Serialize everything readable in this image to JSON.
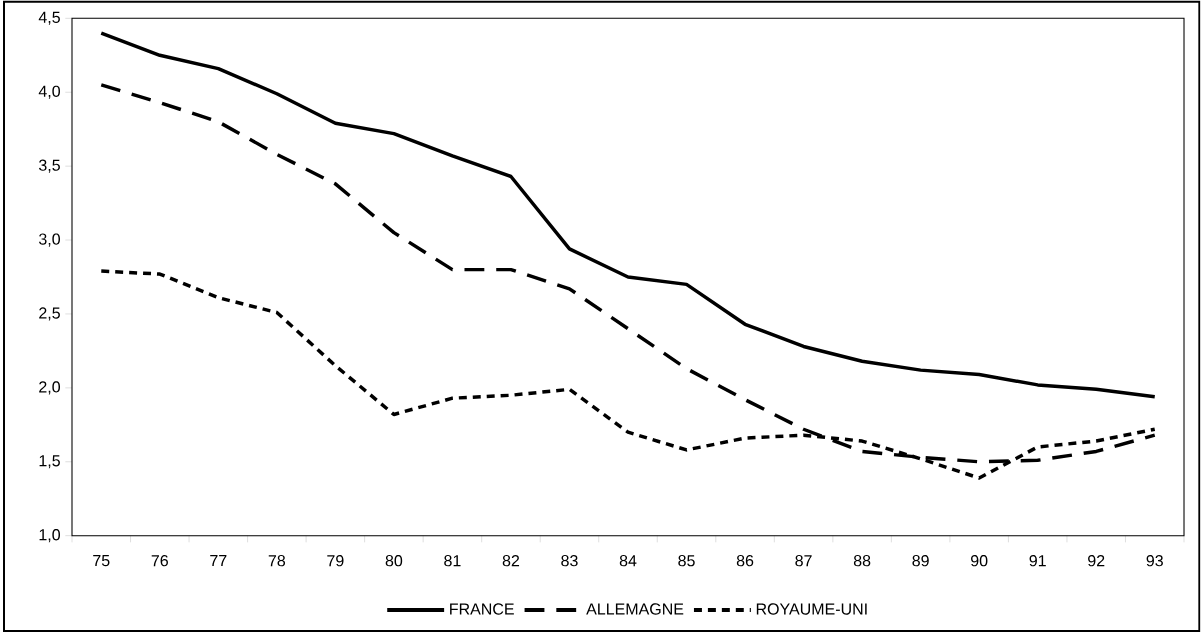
{
  "chart_data": {
    "type": "line",
    "categories": [
      "75",
      "76",
      "77",
      "78",
      "79",
      "80",
      "81",
      "82",
      "83",
      "84",
      "85",
      "86",
      "87",
      "88",
      "89",
      "90",
      "91",
      "92",
      "93"
    ],
    "series": [
      {
        "name": "FRANCE",
        "color": "#000000",
        "line_style": "solid",
        "values": [
          4.4,
          4.25,
          4.16,
          3.99,
          3.79,
          3.72,
          3.57,
          3.43,
          2.94,
          2.75,
          2.7,
          2.43,
          2.28,
          2.18,
          2.12,
          2.09,
          2.02,
          1.99,
          1.94
        ]
      },
      {
        "name": "ALLEMAGNE",
        "color": "#000000",
        "line_style": "dashed",
        "values": [
          4.05,
          3.93,
          3.8,
          3.58,
          3.38,
          3.05,
          2.8,
          2.8,
          2.67,
          2.4,
          2.13,
          1.92,
          1.72,
          1.57,
          1.53,
          1.5,
          1.51,
          1.57,
          1.68
        ]
      },
      {
        "name": "ROYAUME-UNI",
        "color": "#000000",
        "line_style": "dotted",
        "values": [
          2.79,
          2.77,
          2.61,
          2.51,
          2.15,
          1.82,
          1.93,
          1.95,
          1.99,
          1.7,
          1.58,
          1.66,
          1.68,
          1.64,
          1.52,
          1.39,
          1.6,
          1.64,
          1.72
        ]
      }
    ],
    "ylim": [
      1.0,
      4.5
    ],
    "yticks": [
      {
        "value": 1.0,
        "label": "1,0"
      },
      {
        "value": 1.5,
        "label": "1,5"
      },
      {
        "value": 2.0,
        "label": "2,0"
      },
      {
        "value": 2.5,
        "label": "2,5"
      },
      {
        "value": 3.0,
        "label": "3,0"
      },
      {
        "value": 3.5,
        "label": "3,5"
      },
      {
        "value": 4.0,
        "label": "4,0"
      },
      {
        "value": 4.5,
        "label": "4,5"
      }
    ],
    "grid": false,
    "legend": "bottom",
    "marker": "none"
  }
}
